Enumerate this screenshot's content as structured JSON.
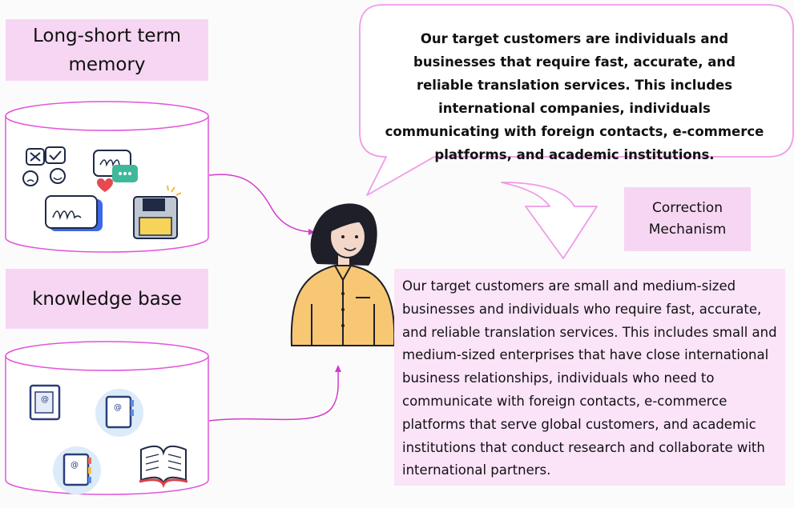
{
  "memory_label": "Long-short term memory",
  "knowledge_label": "knowledge base",
  "correction_label": "Correction Mechanism",
  "initial_answer": "Our target customers are individuals and businesses that require fast, accurate, and reliable translation services. This includes international companies, individuals communicating with foreign contacts, e-commerce platforms, and academic institutions.",
  "corrected_answer": "Our target customers are small and medium-sized businesses and individuals who require fast, accurate, and reliable translation services. This includes small and medium-sized enterprises that have close international business relationships, individuals who need to communicate with foreign contacts, e-commerce platforms that serve global customers, and academic institutions that conduct research and collaborate with international partners.",
  "colors": {
    "label_bg": "#f6d6f3",
    "outline": "#e255da",
    "answer_bg": "#fbe3f8",
    "shirt": "#f7c774"
  }
}
